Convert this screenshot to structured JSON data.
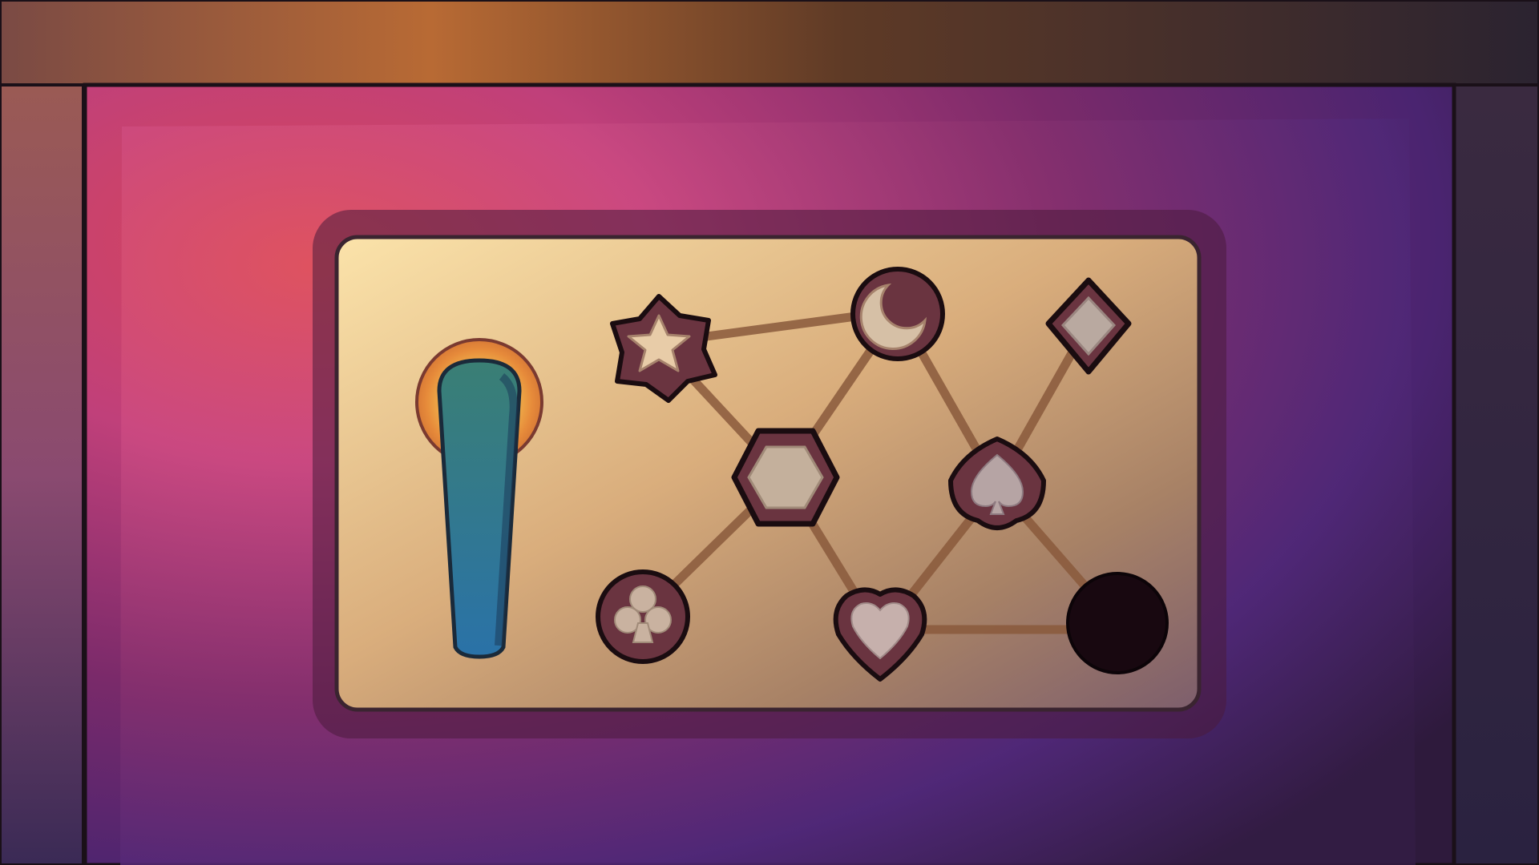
{
  "scene": {
    "name": "symbol-path-puzzle",
    "palette": {
      "wall_warm": "#d4783a",
      "wall_dark": "#2b2330",
      "frame_outline": "#1a1018",
      "panel_warm": "#f1cf8c",
      "panel_cool": "#8a6a77",
      "outer_pink": "#c9467a",
      "outer_purple": "#43226b",
      "path_brown": "#8a5a3c",
      "token_ring": "#6a3440",
      "token_fill": "#c9b2a0",
      "lever_teal": "#2f8fa0",
      "lever_glow": "#e8922f",
      "goal_hole": "#180810"
    }
  },
  "lever": {
    "label": "lever",
    "state": "up"
  },
  "nodes": [
    {
      "id": "star",
      "icon": "star-icon"
    },
    {
      "id": "moon",
      "icon": "moon-icon"
    },
    {
      "id": "diamond",
      "icon": "diamond-icon"
    },
    {
      "id": "hexagon",
      "icon": "hexagon-icon"
    },
    {
      "id": "spade",
      "icon": "spade-icon"
    },
    {
      "id": "club",
      "icon": "club-icon"
    },
    {
      "id": "heart",
      "icon": "heart-icon"
    },
    {
      "id": "hole",
      "icon": "goal-hole"
    }
  ],
  "paths": [
    [
      "star",
      "moon"
    ],
    [
      "star",
      "hexagon"
    ],
    [
      "moon",
      "hexagon"
    ],
    [
      "moon",
      "spade"
    ],
    [
      "diamond",
      "spade"
    ],
    [
      "hexagon",
      "club"
    ],
    [
      "hexagon",
      "heart"
    ],
    [
      "spade",
      "heart"
    ],
    [
      "spade",
      "hole"
    ],
    [
      "heart",
      "hole"
    ]
  ]
}
